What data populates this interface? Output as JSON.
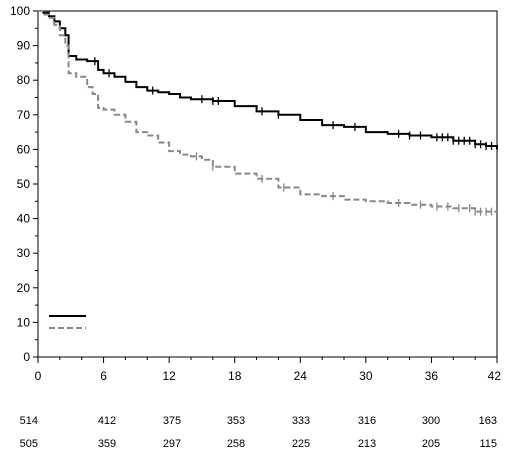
{
  "chart_data": {
    "type": "line",
    "subtype": "kaplan-meier",
    "title": "",
    "xlabel": "",
    "ylabel": "",
    "xlim": [
      0,
      42
    ],
    "ylim": [
      0,
      100
    ],
    "x_ticks": [
      0,
      6,
      12,
      18,
      24,
      30,
      36,
      42
    ],
    "y_ticks": [
      0,
      10,
      20,
      30,
      40,
      50,
      60,
      70,
      80,
      90,
      100
    ],
    "x_tick_labels": [
      "0",
      "6",
      "12",
      "18",
      "24",
      "30",
      "36",
      "42"
    ],
    "y_tick_labels": [
      "0",
      "10",
      "20",
      "30",
      "40",
      "50",
      "60",
      "70",
      "80",
      "90",
      "100"
    ],
    "grid": false,
    "legend": {
      "placement": "bottom-left",
      "entries_text_visible": false
    },
    "series": [
      {
        "color": "#000000",
        "style": "solid",
        "points": [
          [
            0,
            100
          ],
          [
            0.5,
            99.5
          ],
          [
            1.0,
            98.5
          ],
          [
            1.5,
            97
          ],
          [
            2.0,
            95
          ],
          [
            2.5,
            93
          ],
          [
            2.8,
            87
          ],
          [
            3.5,
            86
          ],
          [
            4.5,
            85.5
          ],
          [
            5.5,
            83
          ],
          [
            6.0,
            82
          ],
          [
            7.0,
            81
          ],
          [
            8.0,
            79.5
          ],
          [
            9.0,
            78
          ],
          [
            10.0,
            77
          ],
          [
            11.0,
            76.5
          ],
          [
            12.0,
            76
          ],
          [
            13.0,
            75
          ],
          [
            14.0,
            74.5
          ],
          [
            16.0,
            74
          ],
          [
            18.0,
            72.5
          ],
          [
            20.0,
            71
          ],
          [
            22.0,
            70
          ],
          [
            24.0,
            68.5
          ],
          [
            26.0,
            67
          ],
          [
            28.0,
            66.5
          ],
          [
            30.0,
            65
          ],
          [
            32.0,
            64.5
          ],
          [
            34.0,
            64
          ],
          [
            36.0,
            63.5
          ],
          [
            38.0,
            62.5
          ],
          [
            40.0,
            61.5
          ],
          [
            41.0,
            61
          ],
          [
            42.0,
            60
          ]
        ],
        "censor_x": [
          5.2,
          6.5,
          10.5,
          15,
          16,
          16.5,
          20.5,
          22,
          27,
          29,
          33,
          34,
          35,
          36.5,
          37,
          37.5,
          38,
          38.5,
          39,
          39.5,
          40,
          40.5,
          41,
          41.5
        ]
      },
      {
        "color": "#888888",
        "style": "dashed",
        "points": [
          [
            0,
            100
          ],
          [
            0.5,
            99
          ],
          [
            1.0,
            98
          ],
          [
            1.5,
            96
          ],
          [
            2.0,
            93
          ],
          [
            2.5,
            90
          ],
          [
            2.8,
            82
          ],
          [
            3.5,
            81
          ],
          [
            4.5,
            78
          ],
          [
            5.0,
            76
          ],
          [
            5.5,
            72
          ],
          [
            6.0,
            71.5
          ],
          [
            7.0,
            70
          ],
          [
            8.0,
            68
          ],
          [
            9.0,
            65
          ],
          [
            10.0,
            64
          ],
          [
            11.0,
            62
          ],
          [
            12.0,
            59.5
          ],
          [
            13.0,
            58.5
          ],
          [
            14.0,
            58
          ],
          [
            15.0,
            57
          ],
          [
            16.0,
            55
          ],
          [
            18.0,
            53
          ],
          [
            20.0,
            51.5
          ],
          [
            22.0,
            49
          ],
          [
            24.0,
            47
          ],
          [
            26.0,
            46.5
          ],
          [
            28.0,
            45.5
          ],
          [
            30.0,
            45
          ],
          [
            32.0,
            44.5
          ],
          [
            34.0,
            44
          ],
          [
            36.0,
            43.5
          ],
          [
            38.0,
            43
          ],
          [
            40.0,
            42
          ],
          [
            42.0,
            41
          ]
        ],
        "censor_x": [
          14.5,
          16,
          20.5,
          22.5,
          27,
          33,
          35,
          36.5,
          37.5,
          38.5,
          39.5,
          40,
          40.5,
          41,
          41.5
        ]
      }
    ],
    "risk_table": [
      {
        "values": [
          "514",
          "412",
          "375",
          "353",
          "333",
          "316",
          "300",
          "163"
        ]
      },
      {
        "values": [
          "505",
          "359",
          "297",
          "258",
          "225",
          "213",
          "205",
          "115"
        ]
      }
    ]
  }
}
